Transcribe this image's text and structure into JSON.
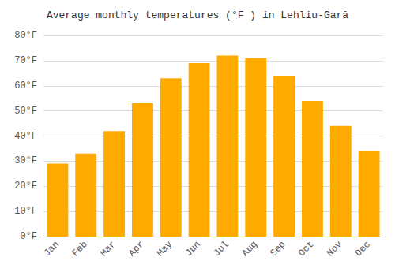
{
  "chart_data": {
    "type": "bar",
    "title": "Average monthly temperatures (°F ) in Lehliu-Gară",
    "categories": [
      "Jan",
      "Feb",
      "Mar",
      "Apr",
      "May",
      "Jun",
      "Jul",
      "Aug",
      "Sep",
      "Oct",
      "Nov",
      "Dec"
    ],
    "values": [
      29,
      33,
      42,
      53,
      63,
      69,
      72,
      71,
      64,
      54,
      44,
      34
    ],
    "color": "#FFAA00",
    "ylim": [
      0,
      80
    ],
    "yticks": [
      {
        "value": 0,
        "label": "0°F"
      },
      {
        "value": 10,
        "label": "10°F"
      },
      {
        "value": 20,
        "label": "20°F"
      },
      {
        "value": 30,
        "label": "30°F"
      },
      {
        "value": 40,
        "label": "40°F"
      },
      {
        "value": 50,
        "label": "50°F"
      },
      {
        "value": 60,
        "label": "60°F"
      },
      {
        "value": 70,
        "label": "70°F"
      },
      {
        "value": 80,
        "label": "80°F"
      }
    ],
    "grid": true
  }
}
